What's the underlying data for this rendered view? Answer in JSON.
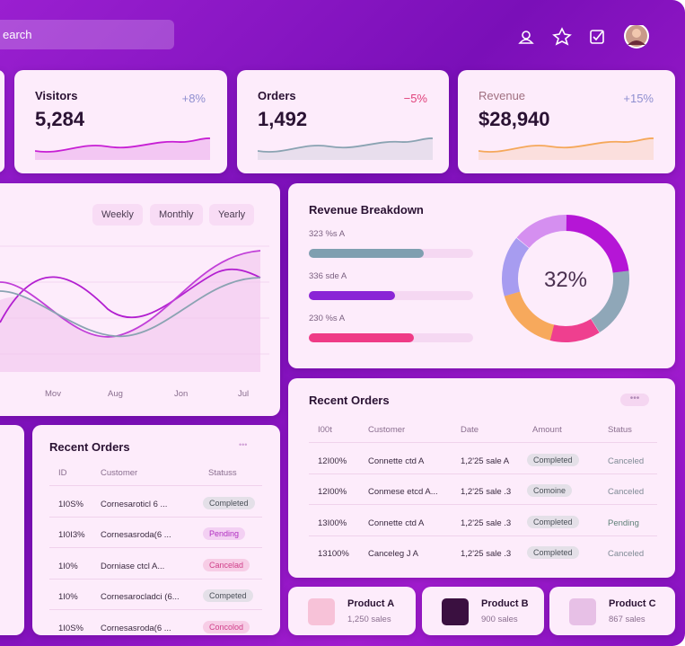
{
  "header": {
    "search": "earch"
  },
  "stats": [
    {
      "label": "Visitors",
      "value": "5,284",
      "change": "+8%"
    },
    {
      "label": "Orders",
      "value": "1,492",
      "change": "−5%"
    },
    {
      "label": "Revenue",
      "value": "$28,940",
      "change": "+15%"
    }
  ],
  "trend": {
    "tabs": [
      "Weekly",
      "Monthly",
      "Yearly"
    ],
    "x_labels": [
      "Mov",
      "Aug",
      "Jon",
      "Jul"
    ]
  },
  "breakdown": {
    "title": "Revenue Breakdown",
    "rows": [
      "323 %s A",
      "336 sde A",
      "230 %s A"
    ],
    "center": "32%"
  },
  "orders_right": {
    "title": "Recent Orders",
    "columns": [
      "I00t",
      "Customer",
      "Date",
      "Amount",
      "Status"
    ],
    "rows": [
      [
        "12I00%",
        "Connette ctd A",
        "1,2'25 sale A",
        "Completed",
        "Canceled"
      ],
      [
        "12I00%",
        "Conmese etcd A...",
        "1,2'25 sale .3",
        "Comoine",
        "Canceled"
      ],
      [
        "13I00%",
        "Connette ctd A",
        "1,2'25 sale .3",
        "Completed",
        "Pending"
      ],
      [
        "13100%",
        "Canceleg J A",
        "1,2'25 sale .3",
        "Completed",
        "Canceled"
      ]
    ]
  },
  "orders_left": {
    "title": "Recent Orders",
    "columns": [
      "ID",
      "Customer",
      "Statuss"
    ],
    "rows": [
      [
        "1I0S%",
        "Cornesaroticl 6 ...",
        "Completed"
      ],
      [
        "1I0I3%",
        "Cornesasroda(6 ...",
        "Pending"
      ],
      [
        "1I0%",
        "Dorniase ctcl A...",
        "Cancelad"
      ],
      [
        "1I0%",
        "Cornesarocladci (6...",
        "Competed"
      ],
      [
        "1I0S%",
        "Cornesasroda(6 ...",
        "Concolod"
      ]
    ]
  },
  "products": [
    {
      "name": "Product A",
      "sales": "1,250 sales"
    },
    {
      "name": "Product B",
      "sales": "900 sales"
    },
    {
      "name": "Product C",
      "sales": "867 sales"
    }
  ]
}
